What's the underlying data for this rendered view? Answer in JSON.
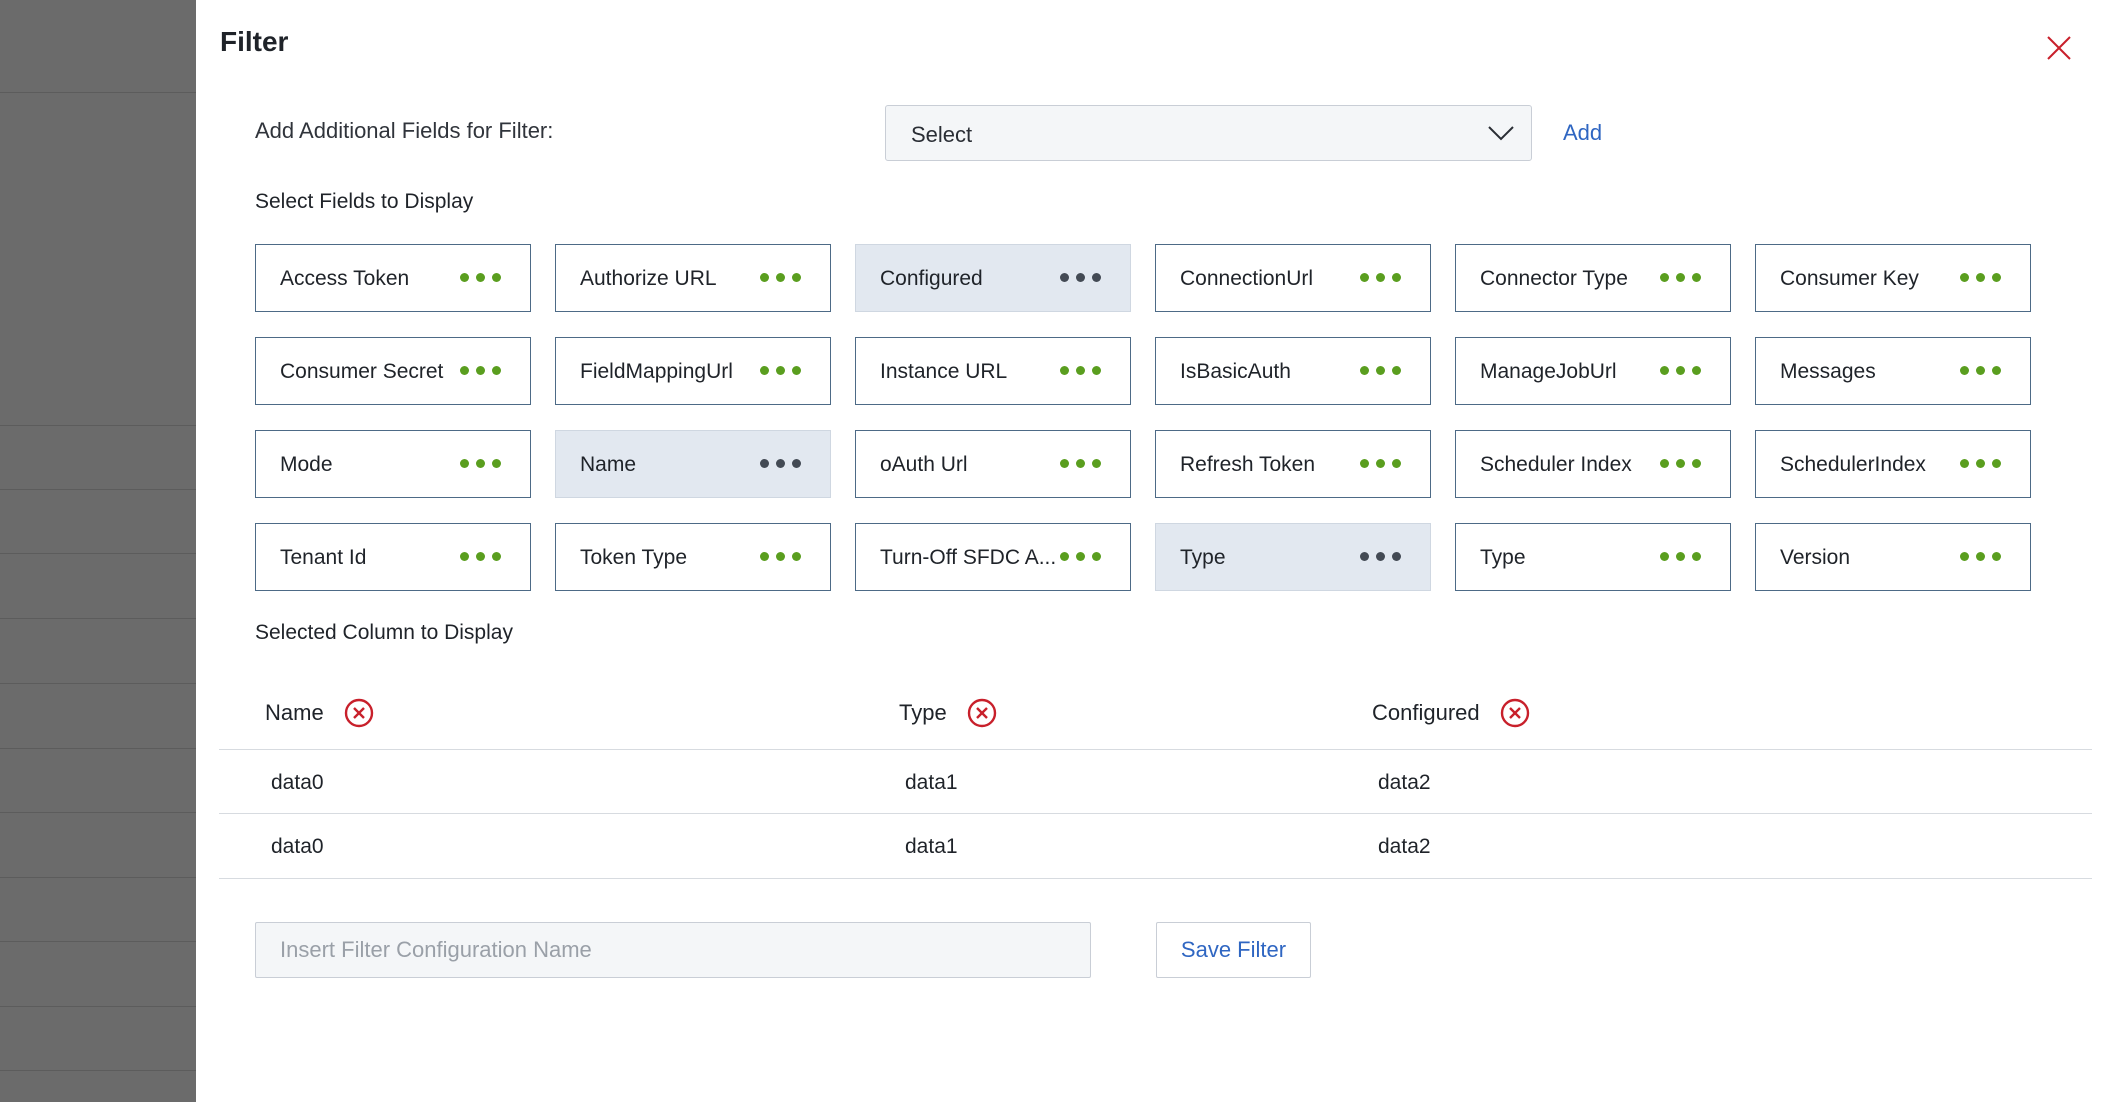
{
  "dialog": {
    "title": "Filter",
    "close_icon": "close-icon"
  },
  "add_fields": {
    "label": "Add Additional Fields for Filter:",
    "select_value": "Select",
    "add_label": "Add"
  },
  "select_fields": {
    "heading": "Select Fields to Display",
    "items": [
      {
        "label": "Access Token",
        "selected": false
      },
      {
        "label": "Authorize URL",
        "selected": false
      },
      {
        "label": "Configured",
        "selected": true
      },
      {
        "label": "ConnectionUrl",
        "selected": false
      },
      {
        "label": "Connector Type",
        "selected": false
      },
      {
        "label": "Consumer Key",
        "selected": false
      },
      {
        "label": "Consumer Secret",
        "selected": false
      },
      {
        "label": "FieldMappingUrl",
        "selected": false
      },
      {
        "label": "Instance URL",
        "selected": false
      },
      {
        "label": "IsBasicAuth",
        "selected": false
      },
      {
        "label": "ManageJobUrl",
        "selected": false
      },
      {
        "label": "Messages",
        "selected": false
      },
      {
        "label": "Mode",
        "selected": false
      },
      {
        "label": "Name",
        "selected": true
      },
      {
        "label": "oAuth Url",
        "selected": false
      },
      {
        "label": "Refresh Token",
        "selected": false
      },
      {
        "label": "Scheduler Index",
        "selected": false
      },
      {
        "label": "SchedulerIndex",
        "selected": false
      },
      {
        "label": "Tenant Id",
        "selected": false
      },
      {
        "label": "Token Type",
        "selected": false
      },
      {
        "label": "Turn-Off SFDC A...",
        "selected": false
      },
      {
        "label": "Type",
        "selected": true
      },
      {
        "label": "Type",
        "selected": false
      },
      {
        "label": "Version",
        "selected": false
      }
    ]
  },
  "selected_columns": {
    "heading": "Selected Column to Display",
    "columns": [
      "Name",
      "Type",
      "Configured"
    ],
    "rows": [
      [
        "data0",
        "data1",
        "data2"
      ],
      [
        "data0",
        "data1",
        "data2"
      ]
    ]
  },
  "save": {
    "placeholder": "Insert Filter Configuration Name",
    "value": "",
    "button_label": "Save Filter"
  },
  "colors": {
    "accent": "#2f66c2",
    "dot_active": "#5a9e1f",
    "dot_selected": "#434a54",
    "remove": "#c8202b",
    "selected_bg": "#e2e8f0"
  }
}
